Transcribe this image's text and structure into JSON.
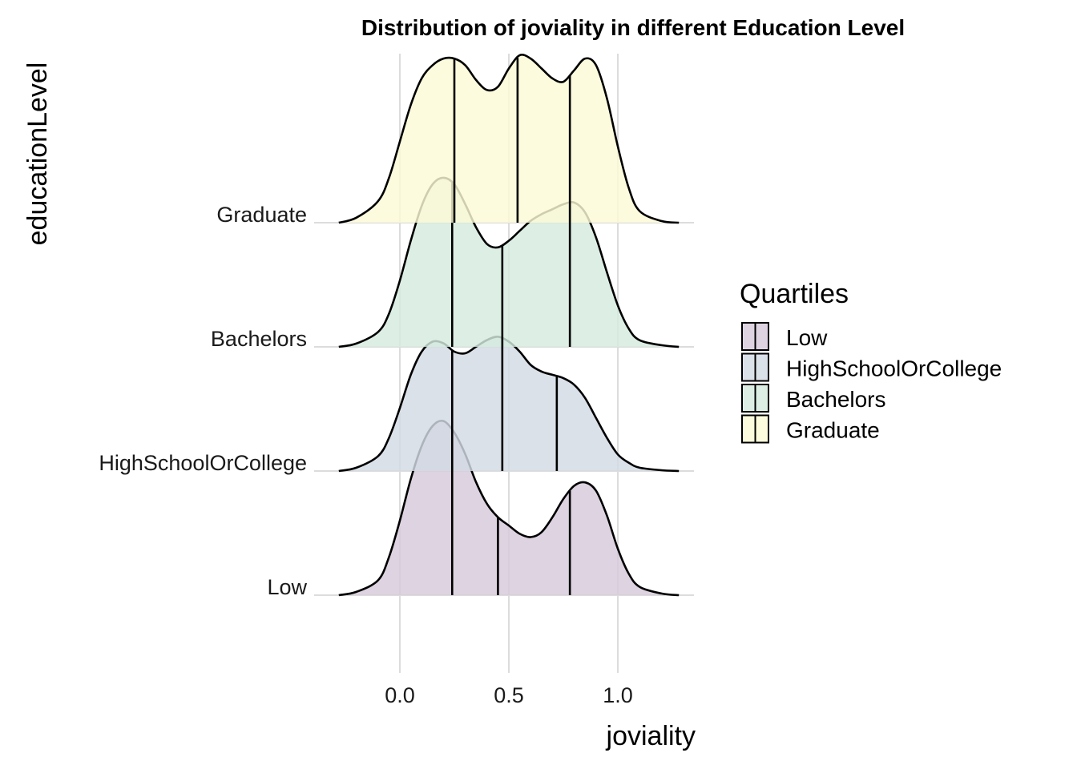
{
  "chart_data": {
    "type": "ridgeline",
    "title": "Distribution of joviality in different Education Level",
    "xlabel": "joviality",
    "ylabel": "educationLevel",
    "xlim": [
      -0.35,
      1.35
    ],
    "x_ticks": [
      {
        "value": 0.0,
        "label": "0.0"
      },
      {
        "value": 0.5,
        "label": "0.5"
      },
      {
        "value": 1.0,
        "label": "1.0"
      }
    ],
    "grid": true,
    "legend": {
      "title": "Quartiles",
      "placement": "right",
      "items": [
        "Low",
        "HighSchoolOrCollege",
        "Bachelors",
        "Graduate"
      ]
    },
    "series": [
      {
        "name": "Low",
        "color": "#d7cbdb",
        "x": [
          -0.28,
          -0.2,
          -0.1,
          -0.05,
          0.0,
          0.05,
          0.1,
          0.15,
          0.2,
          0.25,
          0.3,
          0.35,
          0.4,
          0.45,
          0.5,
          0.55,
          0.6,
          0.65,
          0.7,
          0.75,
          0.8,
          0.85,
          0.9,
          0.95,
          1.0,
          1.05,
          1.1,
          1.2,
          1.28
        ],
        "density": [
          0.0,
          0.02,
          0.09,
          0.23,
          0.45,
          0.7,
          0.9,
          1.02,
          1.05,
          0.98,
          0.85,
          0.68,
          0.55,
          0.47,
          0.42,
          0.37,
          0.35,
          0.38,
          0.47,
          0.58,
          0.66,
          0.68,
          0.63,
          0.48,
          0.28,
          0.13,
          0.05,
          0.01,
          0.0
        ],
        "quartiles": [
          0.24,
          0.45,
          0.78
        ]
      },
      {
        "name": "HighSchoolOrCollege",
        "color": "#d3dbe4",
        "x": [
          -0.28,
          -0.2,
          -0.1,
          -0.05,
          0.0,
          0.05,
          0.1,
          0.15,
          0.2,
          0.25,
          0.3,
          0.35,
          0.4,
          0.45,
          0.5,
          0.55,
          0.6,
          0.65,
          0.7,
          0.75,
          0.8,
          0.85,
          0.9,
          0.95,
          1.0,
          1.05,
          1.1,
          1.2,
          1.28
        ],
        "density": [
          0.0,
          0.02,
          0.09,
          0.2,
          0.38,
          0.58,
          0.72,
          0.78,
          0.77,
          0.72,
          0.71,
          0.75,
          0.79,
          0.81,
          0.78,
          0.72,
          0.64,
          0.6,
          0.58,
          0.56,
          0.52,
          0.44,
          0.32,
          0.2,
          0.1,
          0.05,
          0.02,
          0.005,
          0.0
        ],
        "quartiles": [
          0.24,
          0.47,
          0.72
        ]
      },
      {
        "name": "Bachelors",
        "color": "#d5ecdf",
        "x": [
          -0.28,
          -0.2,
          -0.1,
          -0.05,
          0.0,
          0.05,
          0.1,
          0.15,
          0.2,
          0.25,
          0.3,
          0.35,
          0.4,
          0.45,
          0.5,
          0.55,
          0.6,
          0.65,
          0.7,
          0.75,
          0.8,
          0.85,
          0.9,
          0.95,
          1.0,
          1.05,
          1.1,
          1.2,
          1.28
        ],
        "density": [
          0.0,
          0.02,
          0.09,
          0.2,
          0.4,
          0.64,
          0.85,
          0.98,
          1.02,
          0.98,
          0.86,
          0.72,
          0.62,
          0.6,
          0.64,
          0.7,
          0.76,
          0.8,
          0.83,
          0.86,
          0.87,
          0.81,
          0.66,
          0.45,
          0.25,
          0.11,
          0.04,
          0.01,
          0.0
        ],
        "quartiles": [
          0.24,
          0.47,
          0.78
        ]
      },
      {
        "name": "Graduate",
        "color": "#fdfad6",
        "x": [
          -0.28,
          -0.2,
          -0.1,
          -0.05,
          0.0,
          0.05,
          0.1,
          0.15,
          0.2,
          0.25,
          0.3,
          0.35,
          0.4,
          0.45,
          0.5,
          0.55,
          0.6,
          0.65,
          0.7,
          0.75,
          0.8,
          0.85,
          0.9,
          0.95,
          1.0,
          1.05,
          1.1,
          1.2,
          1.28
        ],
        "density": [
          0.0,
          0.03,
          0.13,
          0.27,
          0.49,
          0.71,
          0.87,
          0.95,
          0.99,
          0.99,
          0.95,
          0.86,
          0.8,
          0.82,
          0.93,
          1.01,
          0.99,
          0.93,
          0.87,
          0.85,
          0.92,
          0.99,
          0.95,
          0.75,
          0.46,
          0.21,
          0.07,
          0.01,
          0.0
        ],
        "quartiles": [
          0.25,
          0.54,
          0.78
        ]
      }
    ]
  }
}
